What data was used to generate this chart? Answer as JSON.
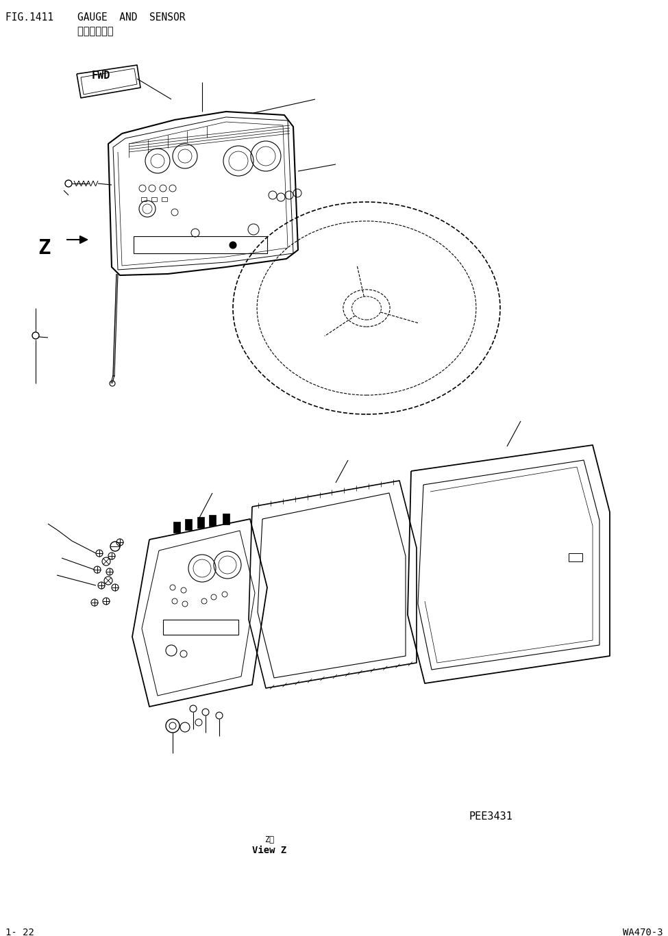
{
  "title_line1": "FIG.1411    GAUGE  AND  SENSOR",
  "title_line2": "            仪表及限位器",
  "footer_left": "1- 22",
  "footer_right": "WA470-3",
  "watermark": "PEE3431",
  "view_label_cn": "Z视",
  "view_label_en": "View Z",
  "background_color": "#ffffff",
  "line_color": "#000000",
  "fig_width": 9.75,
  "fig_height": 13.67,
  "dpi": 100
}
